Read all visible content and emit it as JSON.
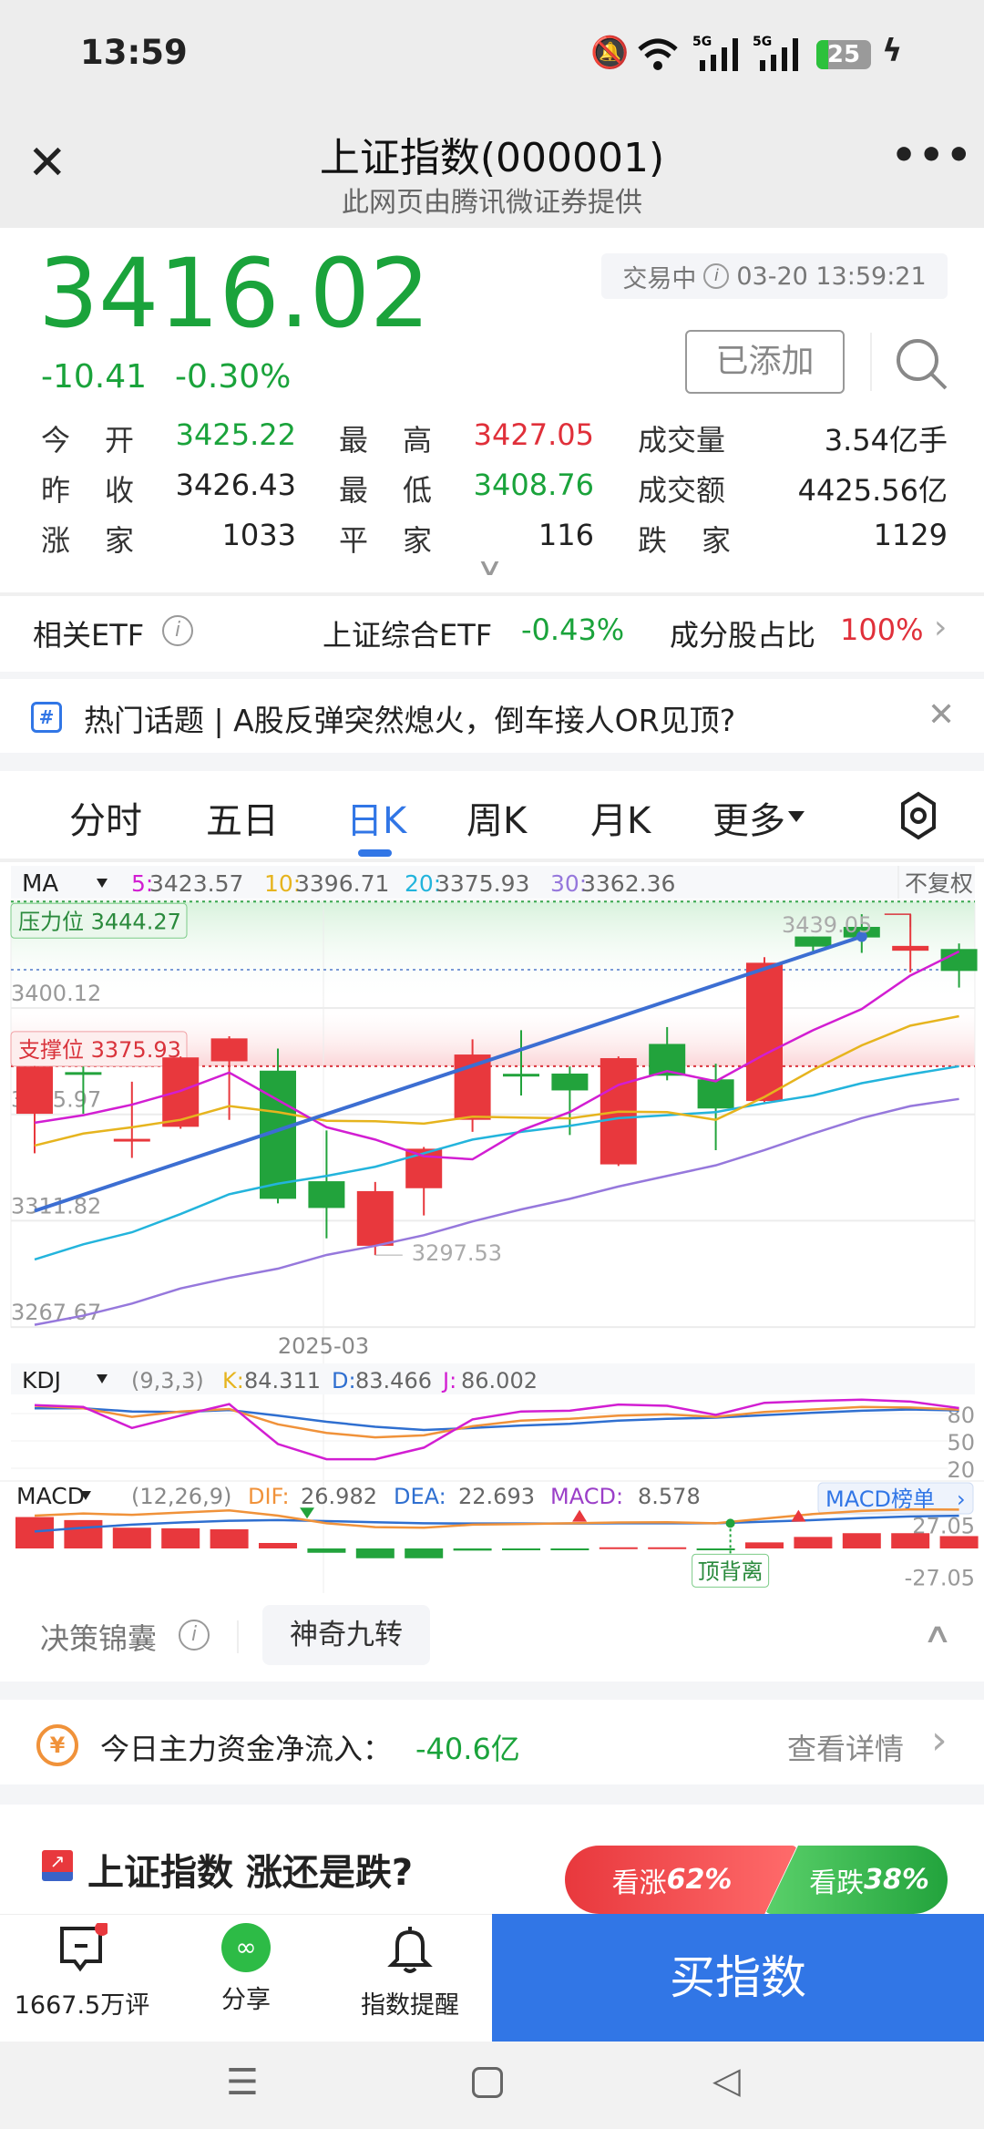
{
  "status_bar": {
    "time": "13:59",
    "battery": "25",
    "icons": [
      "mute-bell-icon",
      "wifi-icon",
      "5g-signal-icon",
      "5g-signal-icon",
      "battery-icon",
      "charging-icon"
    ]
  },
  "nav": {
    "title": "上证指数(000001)",
    "subtitle": "此网页由腾讯微证券提供",
    "close_icon": "close-icon",
    "more_icon": "more-icon"
  },
  "quote": {
    "price": "3416.02",
    "change": "-10.41",
    "change_pct": "-0.30%",
    "status": "交易中",
    "datetime": "03-20 13:59:21",
    "added_label": "已添加",
    "stats": [
      {
        "label": [
          "今",
          "开"
        ],
        "value": "3425.22",
        "color": "#1aa33b"
      },
      {
        "label": [
          "最",
          "高"
        ],
        "value": "3427.05",
        "color": "#e0303a"
      },
      {
        "label": [
          "成交量"
        ],
        "value": "3.54亿手",
        "color": "#222222"
      },
      {
        "label": [
          "昨",
          "收"
        ],
        "value": "3426.43",
        "color": "#222222"
      },
      {
        "label": [
          "最",
          "低"
        ],
        "value": "3408.76",
        "color": "#1aa33b"
      },
      {
        "label": [
          "成交额"
        ],
        "value": "4425.56亿",
        "color": "#222222"
      },
      {
        "label": [
          "涨",
          "家"
        ],
        "value": "1033",
        "color": "#222222"
      },
      {
        "label": [
          "平",
          "家"
        ],
        "value": "116",
        "color": "#222222"
      },
      {
        "label": [
          "跌",
          "家"
        ],
        "value": "1129",
        "color": "#222222"
      }
    ]
  },
  "etf": {
    "label": "相关ETF",
    "name": "上证综合ETF",
    "change": "-0.43%",
    "ratio_label": "成分股占比",
    "ratio": "100%"
  },
  "topic": {
    "text": "热门话题 | A股反弹突然熄火，倒车接人OR见顶?"
  },
  "tabs": [
    {
      "label": "分时"
    },
    {
      "label": "五日"
    },
    {
      "label": "日K",
      "active": true
    },
    {
      "label": "周K"
    },
    {
      "label": "月K"
    },
    {
      "label": "更多"
    }
  ],
  "colors": {
    "up": "#e8383d",
    "down": "#22a33c",
    "ma5": "#d21ed2",
    "ma10": "#e6b41e",
    "ma20": "#23b4dc",
    "ma30": "#9678dc",
    "trend": "#3c6ed2",
    "accent": "#3176e6"
  },
  "chart_data": {
    "type": "candlestick",
    "ma_legend": {
      "name": "MA",
      "items": [
        {
          "k": "5:",
          "v": "3423.57"
        },
        {
          "k": "10:",
          "v": "3396.71"
        },
        {
          "k": "20:",
          "v": "3375.93"
        },
        {
          "k": "30:",
          "v": "3362.36"
        }
      ],
      "adjust": "不复权"
    },
    "resistance": {
      "label": "压力位 3444.27",
      "value": 3444.27
    },
    "support": {
      "label": "支撑位 3375.93",
      "value": 3375.93
    },
    "current_line": 3416.02,
    "y_ticks": [
      "3400.12",
      "3355.97",
      "3311.82",
      "3267.67"
    ],
    "y_tick_values": [
      3400.12,
      3355.97,
      3311.82,
      3267.67
    ],
    "x_label": "2025-03",
    "x_label_index": 7,
    "high_label": "3439.05",
    "low_label": "3297.53",
    "candles": [
      [
        3356.2,
        3376.0,
        3339.8,
        3375.8
      ],
      [
        3373.5,
        3375.8,
        3356.2,
        3373.0
      ],
      [
        3345.5,
        3369.5,
        3337.9,
        3345.8
      ],
      [
        3350.8,
        3380.0,
        3350.0,
        3379.6
      ],
      [
        3378.0,
        3388.4,
        3353.7,
        3387.5
      ],
      [
        3374.1,
        3383.3,
        3319.0,
        3320.9
      ],
      [
        3328.2,
        3349.3,
        3304.5,
        3317.1
      ],
      [
        3301.4,
        3327.9,
        3297.53,
        3324.1
      ],
      [
        3325.3,
        3342.4,
        3314.0,
        3341.7
      ],
      [
        3353.7,
        3387.1,
        3348.7,
        3380.8
      ],
      [
        3372.8,
        3390.9,
        3363.8,
        3372.4
      ],
      [
        3372.9,
        3375.8,
        3347.4,
        3365.9
      ],
      [
        3335.2,
        3380.0,
        3334.5,
        3379.3
      ],
      [
        3385.2,
        3392.2,
        3370.1,
        3372.0
      ],
      [
        3370.5,
        3377.0,
        3341.1,
        3358.4
      ],
      [
        3361.5,
        3421.2,
        3361.0,
        3418.9
      ],
      [
        3429.8,
        3429.8,
        3422.4,
        3425.6
      ],
      [
        3433.8,
        3439.05,
        3423.0,
        3429.4
      ],
      [
        3423.9,
        3439.0,
        3414.9,
        3425.9
      ],
      [
        3424.6,
        3426.9,
        3408.6,
        3415.5
      ]
    ],
    "ma5": [
      3352.5,
      3355.6,
      3360.0,
      3365.7,
      3373.3,
      3361.9,
      3350.6,
      3345.5,
      3338.6,
      3337.3,
      3349.3,
      3356.9,
      3368.2,
      3373.9,
      3369.7,
      3380.8,
      3390.9,
      3399.7,
      3413.6,
      3423.57
    ],
    "ma10": [
      3343.0,
      3348.0,
      3350.6,
      3353.7,
      3359.4,
      3356.9,
      3353.3,
      3353.1,
      3352.1,
      3355.0,
      3354.6,
      3354.3,
      3357.1,
      3356.9,
      3353.7,
      3363.2,
      3374.5,
      3384.6,
      3392.8,
      3396.71
    ],
    "ma20": [
      3295.7,
      3302.0,
      3307.0,
      3314.6,
      3322.8,
      3327.2,
      3330.4,
      3334.2,
      3339.8,
      3345.5,
      3348.7,
      3351.2,
      3354.4,
      3355.6,
      3356.9,
      3360.6,
      3363.8,
      3368.9,
      3372.6,
      3375.93
    ],
    "ma30": [
      3268.6,
      3272.4,
      3277.4,
      3283.7,
      3288.1,
      3291.9,
      3297.6,
      3301.4,
      3305.8,
      3311.5,
      3316.5,
      3320.9,
      3326.0,
      3330.4,
      3334.8,
      3341.1,
      3348.0,
      3354.4,
      3359.4,
      3362.36
    ],
    "trendline": {
      "from_index": 0,
      "from": 3315.9,
      "to_index": 17,
      "to": 3429.8
    },
    "kdj": {
      "name": "KDJ",
      "params": "(9,3,3)",
      "k_label": "K:",
      "k": "84.311",
      "d_label": "D:",
      "d": "83.466",
      "j_label": "J:",
      "j": "86.002",
      "y_ticks": [
        "80",
        "50",
        "20"
      ],
      "K": [
        88.5,
        85.8,
        76.4,
        82.3,
        85.0,
        68.2,
        58.8,
        53.9,
        56.1,
        66.1,
        72.3,
        74.2,
        77.7,
        79.1,
        76.4,
        81.8,
        84.5,
        87.2,
        86.6,
        84.311
      ],
      "D": [
        85.8,
        85.8,
        82.3,
        81.8,
        83.9,
        77.7,
        71.0,
        65.5,
        62.0,
        64.2,
        66.9,
        68.8,
        72.3,
        74.2,
        75.5,
        78.2,
        80.9,
        83.1,
        84.5,
        83.466
      ],
      "J": [
        89.3,
        87.2,
        64.2,
        77.7,
        90.4,
        46.6,
        29.9,
        29.9,
        42.6,
        73.6,
        82.3,
        83.1,
        89.9,
        88.5,
        78.5,
        91.8,
        93.9,
        95.3,
        93.1,
        86.002
      ]
    },
    "macd": {
      "name": "MACD",
      "params": "(12,26,9)",
      "dif_label": "DIF:",
      "dif": "26.982",
      "dea_label": "DEA:",
      "dea": "22.693",
      "macd_label": "MACD:",
      "macd": "8.578",
      "rank_label": "MACD榜单",
      "y_ticks": [
        "27.05",
        "-27.05"
      ],
      "divergence_label": "顶背离",
      "hist": [
        21.8,
        19.7,
        14.4,
        14.0,
        13.3,
        3.8,
        -3.0,
        -6.8,
        -6.8,
        -1.5,
        -0.3,
        -0.3,
        0.8,
        0.8,
        -0.8,
        4.2,
        8.0,
        10.6,
        10.6,
        8.578
      ],
      "DIF": [
        22.8,
        24.3,
        23.3,
        24.9,
        26.4,
        22.8,
        17.5,
        14.8,
        14.4,
        16.5,
        16.9,
        17.5,
        18.0,
        18.2,
        17.5,
        20.7,
        23.9,
        26.0,
        27.1,
        26.982
      ],
      "DEA": [
        11.8,
        14.4,
        16.5,
        18.0,
        19.2,
        19.7,
        19.0,
        18.2,
        17.5,
        17.3,
        17.3,
        17.3,
        17.5,
        17.5,
        17.5,
        18.6,
        19.7,
        21.1,
        22.2,
        22.693
      ],
      "death_cross_index": 5.6,
      "golden_cross_indices": [
        11.2,
        15.7
      ],
      "divergence_index": 14.3
    }
  },
  "decision": {
    "label": "决策锦囊",
    "chip": "神奇九转"
  },
  "money_flow": {
    "label": "今日主力资金净流入：",
    "value": "-40.6亿",
    "link": "查看详情"
  },
  "vote": {
    "title": "上证指数 涨还是跌?",
    "up_label": "看涨",
    "up_pct": "62%",
    "down_label": "看跌",
    "down_pct": "38%"
  },
  "bottom_bar": {
    "comments": "1667.5万评",
    "share": "分享",
    "alert": "指数提醒",
    "buy": "买指数"
  },
  "system_nav": [
    "menu-icon",
    "home-icon",
    "back-icon"
  ]
}
